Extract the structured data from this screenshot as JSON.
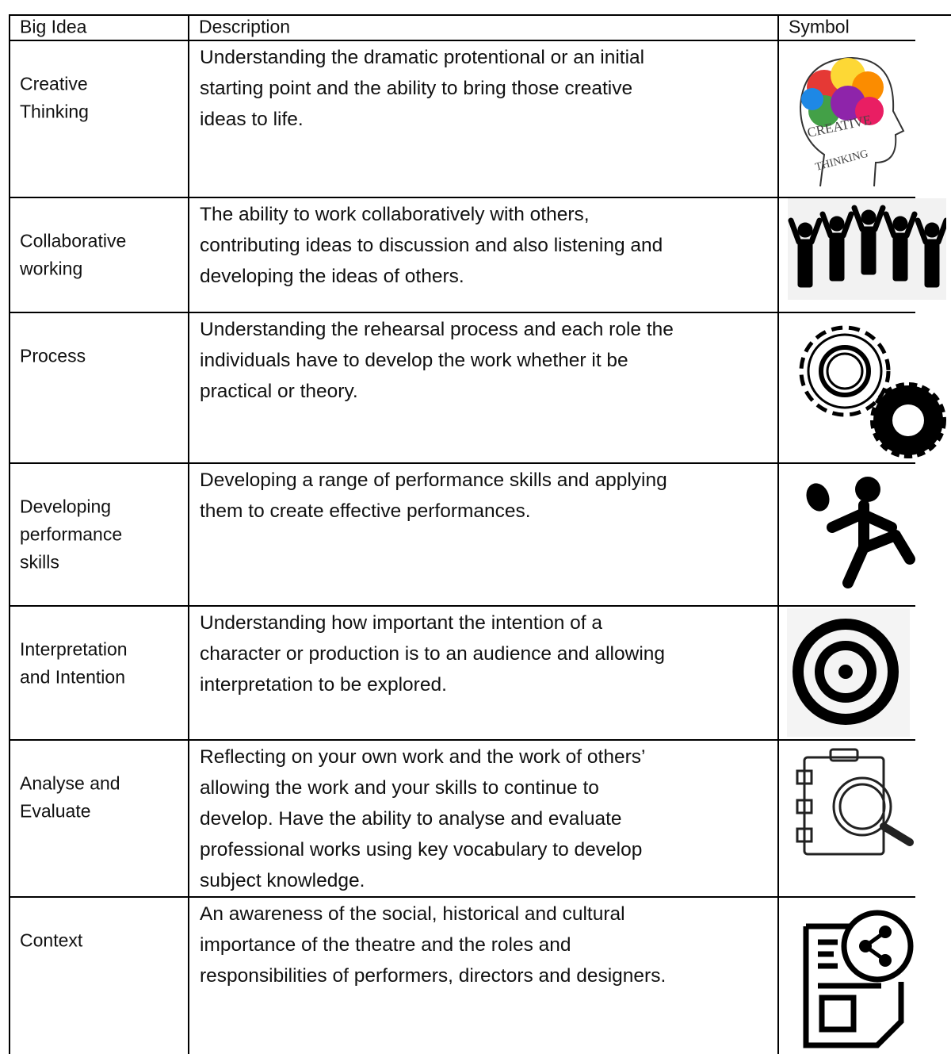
{
  "table": {
    "header": [
      "Big Idea",
      "Description",
      "Symbol"
    ],
    "rows": [
      {
        "idea": [
          "Creative",
          "Thinking"
        ],
        "description": [
          "Understanding the dramatic protentional or an initial",
          "starting point and the ability to bring those creative",
          "ideas to life."
        ]
      },
      {
        "idea": [
          "Collaborative",
          "working"
        ],
        "description": [
          "The ability to work collaboratively with others,",
          "contributing ideas to discussion and also listening and",
          "developing the ideas of others."
        ]
      },
      {
        "idea": [
          "Process"
        ],
        "description": [
          "Understanding the rehearsal process and each role the",
          "individuals have to develop the work whether it be",
          "practical or theory."
        ]
      },
      {
        "idea": [
          "Developing",
          "performance",
          "skills"
        ],
        "description": [
          "Developing a range of performance skills and applying",
          "them to create effective performances."
        ]
      },
      {
        "idea": [
          "Interpretation",
          "and Intention"
        ],
        "description": [
          "Understanding how important the intention of a",
          "character or production is to an audience and allowing",
          "interpretation to be explored."
        ]
      },
      {
        "idea": [
          "Analyse and",
          "Evaluate"
        ],
        "description": [
          "Reflecting on your own work and the work of others’",
          "allowing the work and your skills to continue to",
          "develop.  Have the ability to analyse and evaluate",
          "professional works using key vocabulary to develop",
          "subject knowledge."
        ]
      },
      {
        "idea": [
          "Context"
        ],
        "description": [
          "An awareness of the social, historical and cultural",
          "importance of the theatre and the roles and",
          "responsibilities of performers, directors and designers."
        ]
      }
    ]
  },
  "icons": {
    "creative_thinking": [
      "CREATIVE",
      "THINKING"
    ]
  }
}
